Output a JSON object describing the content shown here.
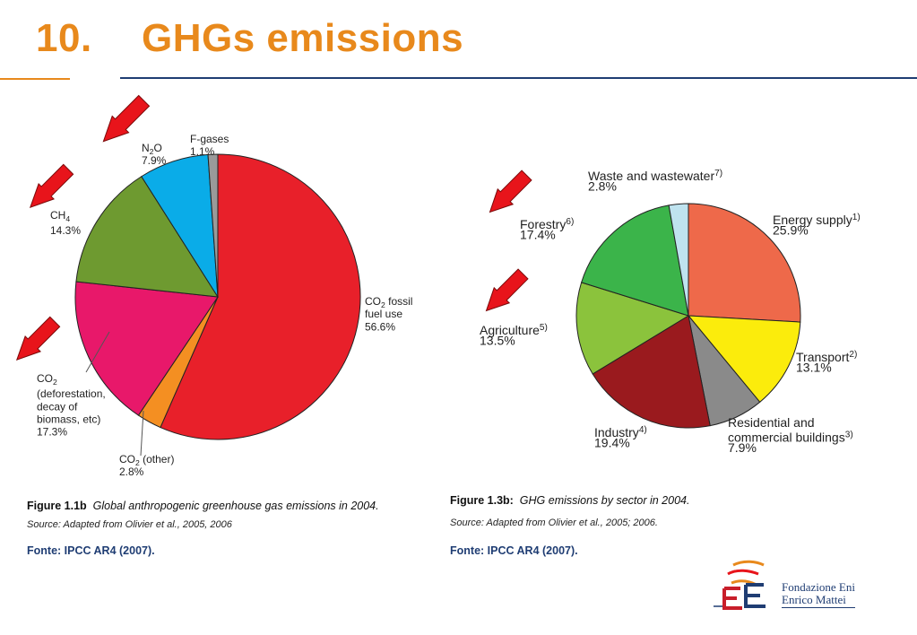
{
  "title": {
    "number": "10.",
    "text": "GHGs emissions"
  },
  "colors": {
    "title": "#e8891c",
    "rule": "#1f3d73",
    "arrow": "#e8141b",
    "fonte": "#1f3d73"
  },
  "chart_data": [
    {
      "type": "pie",
      "caption_label": "Figure 1.1b",
      "caption_text": "Global anthropogenic greenhouse gas emissions in 2004.",
      "source": "Source: Adapted from Olivier et al., 2005, 2006",
      "fonte": "Fonte: IPCC AR4 (2007).",
      "slices": [
        {
          "label": "CO2 fossil fuel use",
          "value": 56.6,
          "color": "#e8202a",
          "text": [
            [
              "CO",
              "2",
              " fossil"
            ],
            [
              "fuel use"
            ],
            [
              "56.6%"
            ]
          ]
        },
        {
          "label": "CO2 (other)",
          "value": 2.8,
          "color": "#f48f22",
          "text": [
            [
              "CO",
              "2",
              " (other)"
            ],
            [
              "2.8%"
            ]
          ]
        },
        {
          "label": "CO2 (deforestation, decay of biomass, etc)",
          "value": 17.3,
          "color": "#e8186a",
          "text": [
            [
              "CO",
              "2",
              ""
            ],
            [
              "(deforestation,"
            ],
            [
              "decay of"
            ],
            [
              "biomass, etc)"
            ],
            [
              "17.3%"
            ]
          ]
        },
        {
          "label": "CH4",
          "value": 14.3,
          "color": "#6e9a30",
          "text": [
            [
              "CH",
              "4",
              ""
            ],
            [
              "14.3%"
            ]
          ]
        },
        {
          "label": "N2O",
          "value": 7.9,
          "color": "#0aace8",
          "text": [
            [
              "N",
              "2",
              "O"
            ],
            [
              "7.9%"
            ]
          ]
        },
        {
          "label": "F-gases",
          "value": 1.1,
          "color": "#9a9a9a",
          "text": [
            [
              "F-gases"
            ],
            [
              "1.1%"
            ]
          ]
        }
      ]
    },
    {
      "type": "pie",
      "caption_label": "Figure 1.3b:",
      "caption_text": "GHG emissions by sector in 2004.",
      "source": "Source: Adapted from Olivier et al., 2005; 2006.",
      "fonte": "Fonte: IPCC AR4 (2007).",
      "slices": [
        {
          "label": "Energy supply",
          "value": 25.9,
          "color": "#ee694a",
          "text": [
            [
              "Energy supply",
              "1)",
              ""
            ],
            [
              "25.9%"
            ]
          ]
        },
        {
          "label": "Transport",
          "value": 13.1,
          "color": "#fbec0c",
          "text": [
            [
              "Transport",
              "2)",
              ""
            ],
            [
              "13.1%"
            ]
          ]
        },
        {
          "label": "Residential and commercial buildings",
          "value": 7.9,
          "color": "#8a8a8a",
          "text": [
            [
              "Residential and"
            ],
            [
              "commercial buildings",
              "3)",
              ""
            ],
            [
              "7.9%"
            ]
          ]
        },
        {
          "label": "Industry",
          "value": 19.4,
          "color": "#9a1a1e",
          "text": [
            [
              "Industry",
              "4)",
              ""
            ],
            [
              "19.4%"
            ]
          ]
        },
        {
          "label": "Agriculture",
          "value": 13.5,
          "color": "#8bc33c",
          "text": [
            [
              "Agriculture",
              "5)",
              ""
            ],
            [
              "13.5%"
            ]
          ]
        },
        {
          "label": "Forestry",
          "value": 17.4,
          "color": "#3bb44a",
          "text": [
            [
              "Forestry",
              "6)",
              ""
            ],
            [
              "17.4%"
            ]
          ]
        },
        {
          "label": "Waste and wastewater",
          "value": 2.8,
          "color": "#bfe3ef",
          "text": [
            [
              "Waste and wastewater",
              "7)",
              ""
            ],
            [
              "2.8%"
            ]
          ]
        }
      ]
    }
  ],
  "logo": {
    "line1": "Fondazione Eni",
    "line2": "Enrico Mattei"
  }
}
